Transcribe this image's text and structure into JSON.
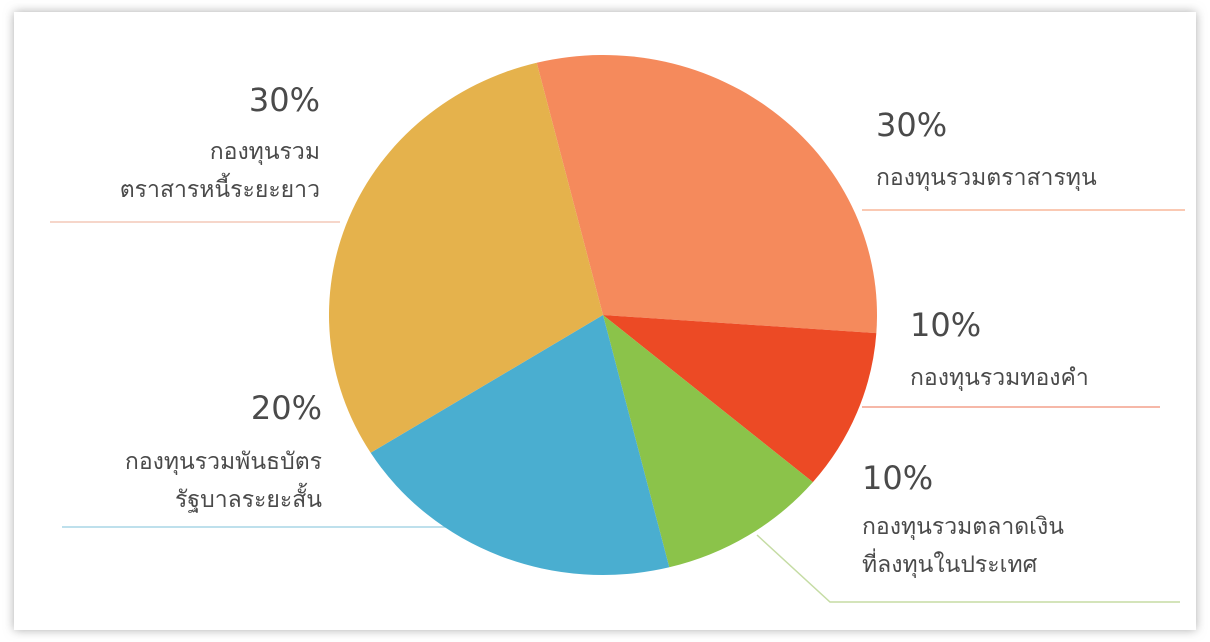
{
  "chart_data": {
    "type": "pie",
    "categories": [
      "กองทุนรวมตราสารทุน",
      "กองทุนรวมทองคำ",
      "กองทุนรวมตลาดเงิน\nที่ลงทุนในประเทศ",
      "กองทุนรวมพันธบัตร\nรัฐบาลระยะสั้น",
      "กองทุนรวม\nตราสารหนี้ระยะยาว"
    ],
    "values": [
      30,
      10,
      10,
      20,
      30
    ],
    "value_labels": [
      "30%",
      "10%",
      "10%",
      "20%",
      "30%"
    ],
    "colors": [
      "#f58a5c",
      "#ec4a25",
      "#8bc34a",
      "#4aaed0",
      "#e5b24c"
    ]
  }
}
